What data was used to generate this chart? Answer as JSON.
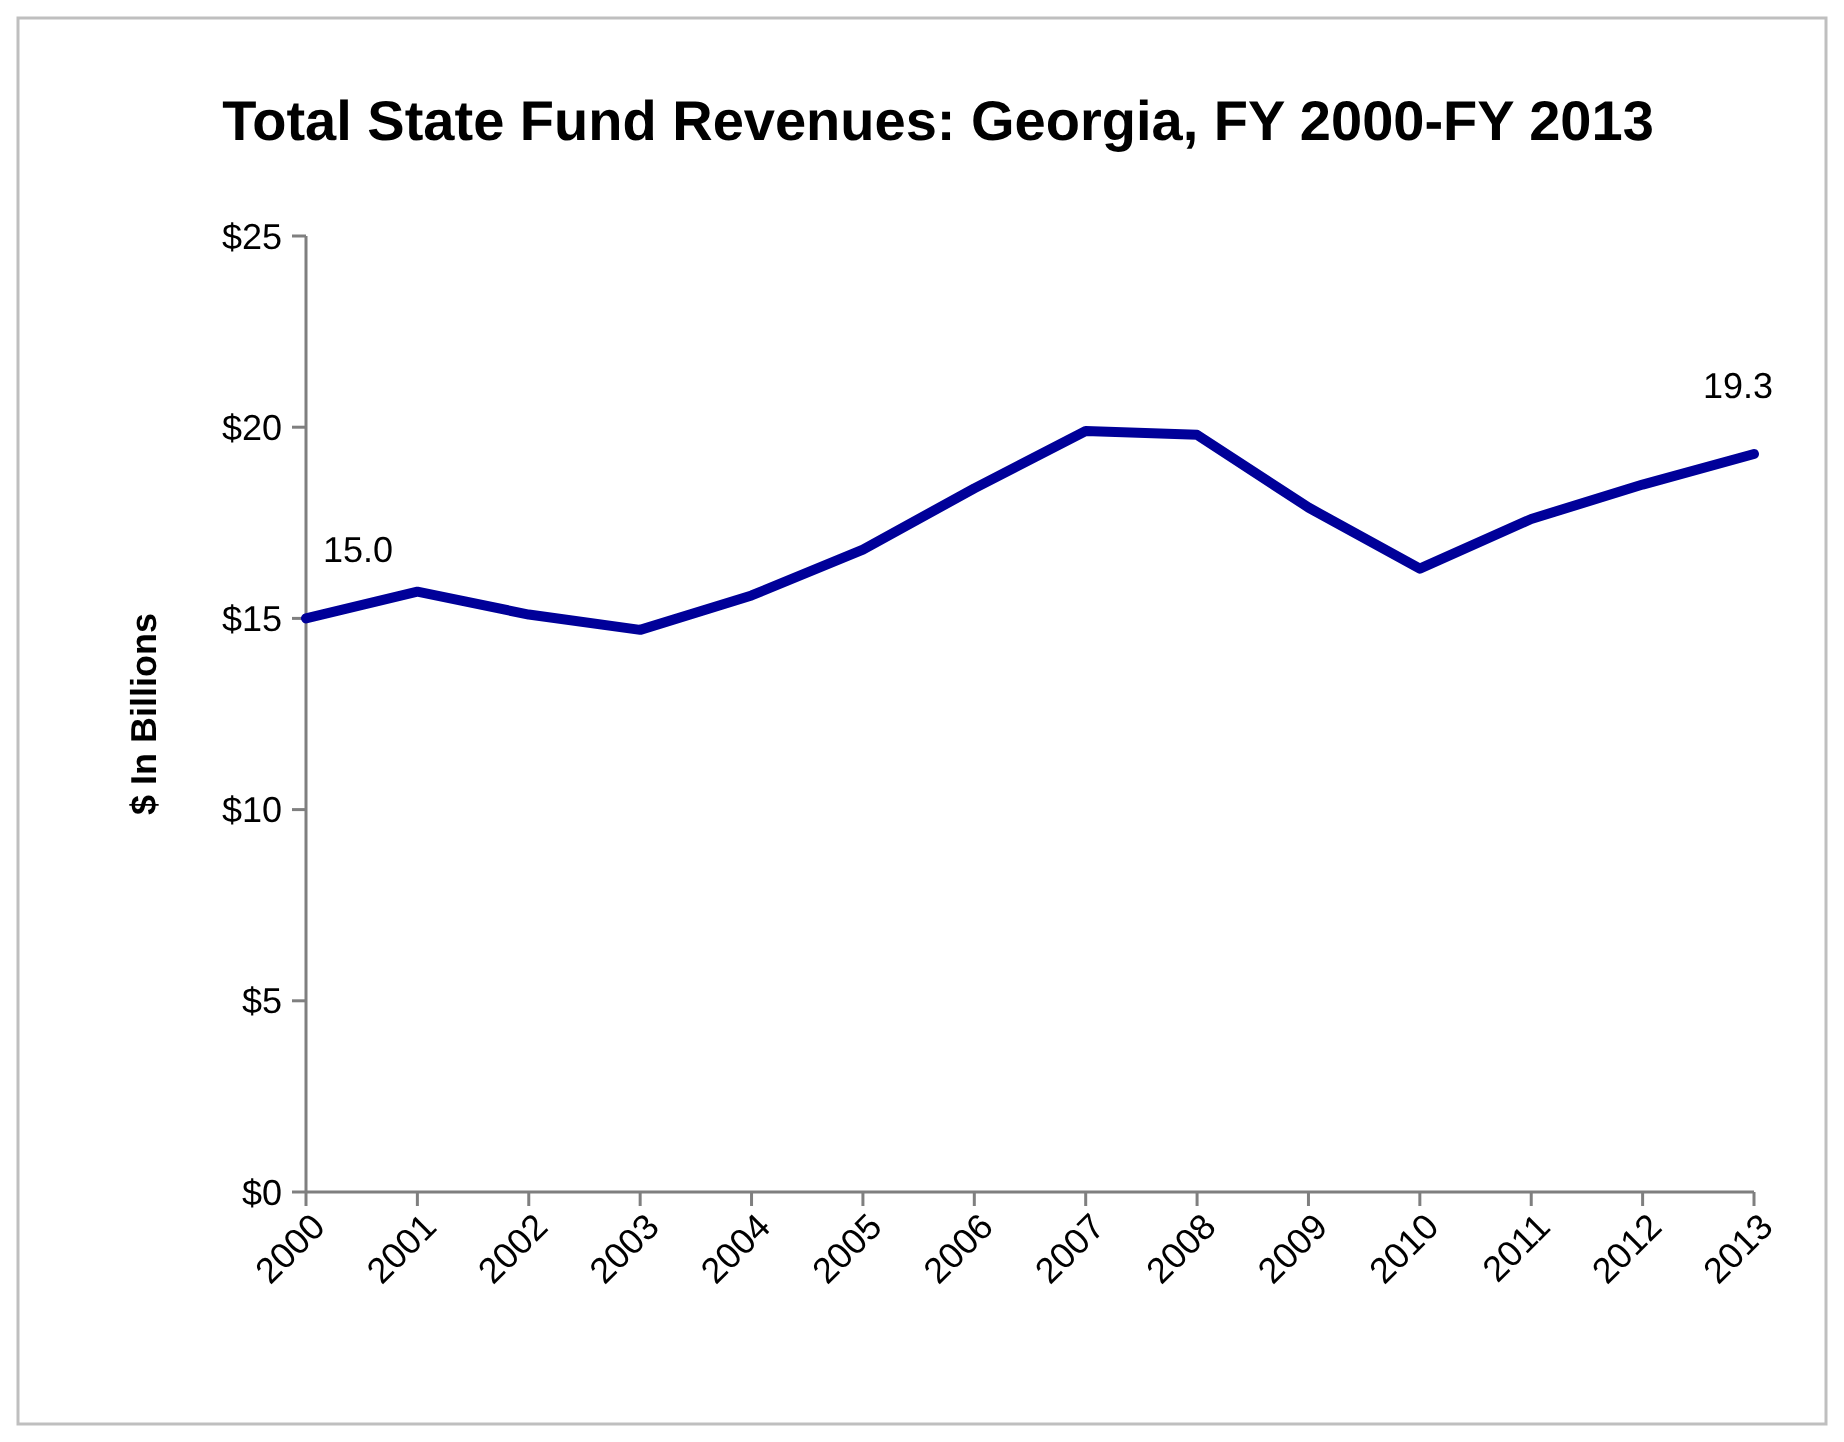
{
  "chart_data": {
    "type": "line",
    "title": "Total State Fund Revenues: Georgia,  FY 2000-FY 2013",
    "ylabel": "$ In Billions",
    "categories": [
      "2000",
      "2001",
      "2002",
      "2003",
      "2004",
      "2005",
      "2006",
      "2007",
      "2008",
      "2009",
      "2010",
      "2011",
      "2012",
      "2013"
    ],
    "series": [
      {
        "color": "#000099",
        "values": [
          15.0,
          15.7,
          15.1,
          14.7,
          15.6,
          16.8,
          18.4,
          19.9,
          19.8,
          17.9,
          16.3,
          17.6,
          18.5,
          19.3
        ],
        "value_labels": [
          "15.0",
          null,
          null,
          null,
          null,
          null,
          null,
          null,
          null,
          null,
          null,
          null,
          null,
          "19.3"
        ]
      }
    ],
    "ylim": [
      0,
      25
    ],
    "yticks": [
      {
        "value": 0,
        "label": "$0"
      },
      {
        "value": 5,
        "label": "$5"
      },
      {
        "value": 10,
        "label": "$10"
      },
      {
        "value": 15,
        "label": "$15"
      },
      {
        "value": 20,
        "label": "$20"
      },
      {
        "value": 25,
        "label": "$25"
      }
    ],
    "grid": false,
    "marker": "none",
    "line_style": "solid"
  }
}
